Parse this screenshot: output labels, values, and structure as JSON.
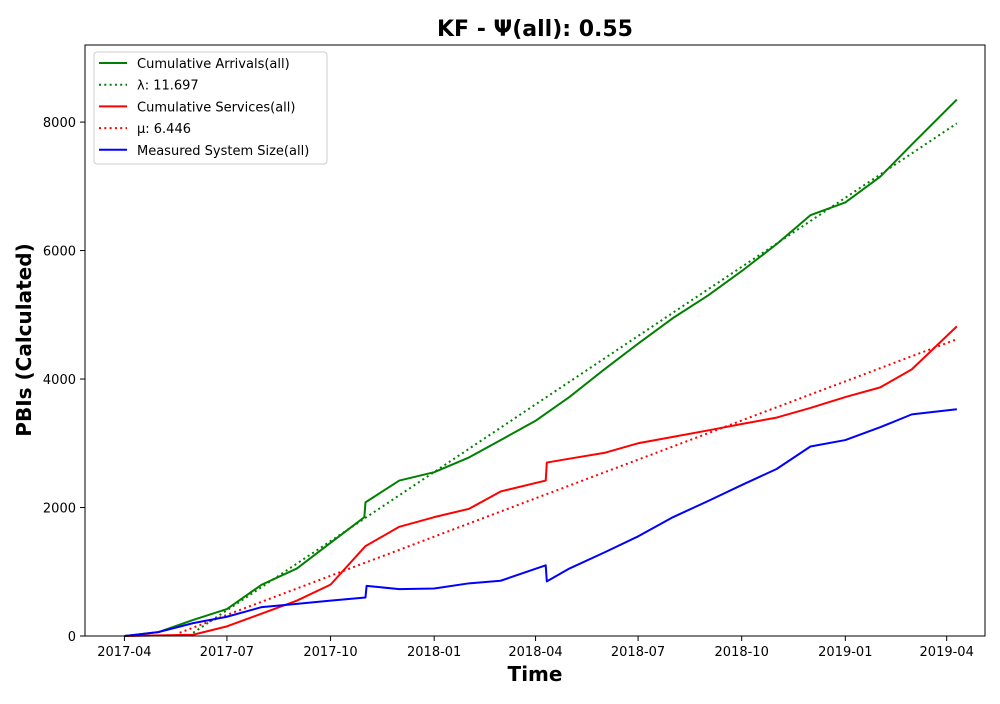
{
  "chart_data": {
    "type": "line",
    "title": "KF -  Ψ(all): 0.55",
    "xlabel": "Time",
    "ylabel": "PBIs (Calculated)",
    "x_ticks": [
      "2017-04",
      "2017-07",
      "2017-10",
      "2018-01",
      "2018-04",
      "2018-07",
      "2018-10",
      "2019-01",
      "2019-04"
    ],
    "x_tick_dates": [
      "2017-04-01",
      "2017-07-01",
      "2017-10-01",
      "2018-01-01",
      "2018-04-01",
      "2018-07-01",
      "2018-10-01",
      "2019-01-01",
      "2019-04-01"
    ],
    "xlim": [
      "2017-02-25",
      "2019-05-05"
    ],
    "y_ticks": [
      0,
      2000,
      4000,
      6000,
      8000
    ],
    "ylim": [
      0,
      9200
    ],
    "grid": false,
    "legend_position": "top-left",
    "series": [
      {
        "name": "Cumulative Arrivals(all)",
        "color": "#008000",
        "style": "solid",
        "x": [
          "2017-04-01",
          "2017-05-01",
          "2017-06-01",
          "2017-07-01",
          "2017-08-01",
          "2017-09-01",
          "2017-10-01",
          "2017-10-31",
          "2017-11-01",
          "2017-12-01",
          "2018-01-01",
          "2018-02-01",
          "2018-03-01",
          "2018-04-01",
          "2018-05-01",
          "2018-06-01",
          "2018-07-01",
          "2018-08-01",
          "2018-09-01",
          "2018-10-01",
          "2018-11-01",
          "2018-12-01",
          "2019-01-01",
          "2019-02-01",
          "2019-03-01",
          "2019-04-10"
        ],
        "y": [
          0,
          60,
          250,
          420,
          800,
          1050,
          1450,
          1850,
          2080,
          2420,
          2550,
          2780,
          3050,
          3350,
          3720,
          4150,
          4550,
          4950,
          5300,
          5680,
          6100,
          6550,
          6750,
          7150,
          7650,
          8350
        ]
      },
      {
        "name": "λ: 11.697",
        "color": "#008000",
        "style": "dotted",
        "x": [
          "2017-06-01",
          "2019-04-10"
        ],
        "y": [
          50,
          7980
        ]
      },
      {
        "name": "Cumulative Services(all)",
        "color": "#ff0000",
        "style": "solid",
        "x": [
          "2017-04-01",
          "2017-06-01",
          "2017-07-01",
          "2017-08-01",
          "2017-09-01",
          "2017-10-01",
          "2017-11-01",
          "2017-12-01",
          "2018-01-01",
          "2018-02-01",
          "2018-03-01",
          "2018-04-10",
          "2018-04-11",
          "2018-05-01",
          "2018-06-01",
          "2018-07-01",
          "2018-08-01",
          "2018-09-01",
          "2018-10-01",
          "2018-11-01",
          "2018-12-01",
          "2019-01-01",
          "2019-02-01",
          "2019-03-01",
          "2019-04-10"
        ],
        "y": [
          0,
          20,
          150,
          350,
          550,
          800,
          1400,
          1700,
          1850,
          1980,
          2250,
          2420,
          2700,
          2760,
          2850,
          3000,
          3100,
          3200,
          3300,
          3400,
          3550,
          3720,
          3870,
          4150,
          4820
        ]
      },
      {
        "name": "μ: 6.446",
        "color": "#ff0000",
        "style": "dotted",
        "x": [
          "2017-05-20",
          "2019-04-10"
        ],
        "y": [
          50,
          4620
        ]
      },
      {
        "name": "Measured System Size(all)",
        "color": "#0000ff",
        "style": "solid",
        "x": [
          "2017-04-01",
          "2017-05-01",
          "2017-06-01",
          "2017-07-01",
          "2017-08-01",
          "2017-09-01",
          "2017-10-01",
          "2017-11-01",
          "2017-11-02",
          "2017-12-01",
          "2018-01-01",
          "2018-02-01",
          "2018-03-01",
          "2018-04-10",
          "2018-04-11",
          "2018-05-01",
          "2018-06-01",
          "2018-07-01",
          "2018-08-01",
          "2018-09-01",
          "2018-10-01",
          "2018-11-01",
          "2018-12-01",
          "2019-01-01",
          "2019-02-01",
          "2019-03-01",
          "2019-04-10"
        ],
        "y": [
          0,
          60,
          200,
          300,
          450,
          500,
          550,
          600,
          780,
          730,
          740,
          820,
          860,
          1100,
          850,
          1050,
          1300,
          1550,
          1850,
          2100,
          2350,
          2600,
          2950,
          3050,
          3250,
          3450,
          3530
        ]
      }
    ]
  },
  "legend": {
    "entries": [
      {
        "label": "Cumulative Arrivals(all)",
        "color": "#008000",
        "style": "solid"
      },
      {
        "label": "λ: 11.697",
        "color": "#008000",
        "style": "dotted"
      },
      {
        "label": "Cumulative Services(all)",
        "color": "#ff0000",
        "style": "solid"
      },
      {
        "label": "μ: 6.446",
        "color": "#ff0000",
        "style": "dotted"
      },
      {
        "label": "Measured System Size(all)",
        "color": "#0000ff",
        "style": "solid"
      }
    ]
  }
}
